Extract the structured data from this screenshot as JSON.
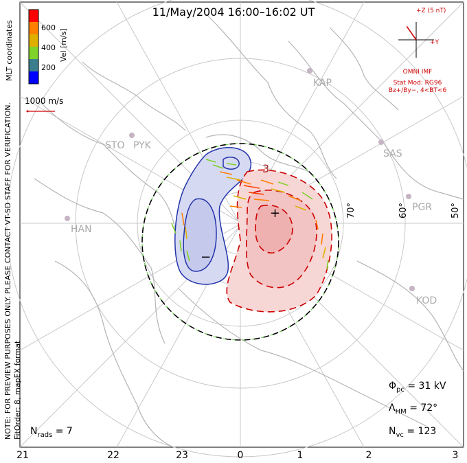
{
  "title": "11/May/2004 16:00–16:02 UT",
  "notice": {
    "line1": "NOTE: FOR PREVIEW PURPOSES ONLY. PLEASE CONTACT VT-SD STAFF FOR VERIFICATION.",
    "line2": "FitOrder: 8, mapEX format"
  },
  "coordinates_label": "MLT coordinates",
  "colorbar": {
    "label": "Vel [m/s]",
    "ticks": [
      "600",
      "400",
      "200"
    ],
    "colors": [
      "#0000ff",
      "#3b7f8f",
      "#7fd32a",
      "#e0b000",
      "#ff8000",
      "#ff0000"
    ]
  },
  "velocity_scale": {
    "label": "1000 m/s",
    "color": "#cc0000"
  },
  "mlt_labels": [
    "21",
    "22",
    "23",
    "0",
    "1",
    "2",
    "3"
  ],
  "latitude_labels": [
    "70°",
    "60°",
    "50°"
  ],
  "stations": [
    "KAP",
    "SAS",
    "PGR",
    "KOD",
    "STO",
    "PYK",
    "HAN"
  ],
  "imf": {
    "z_label": "+Z (5 nT)",
    "y_label": "+Y",
    "source": "OMNI IMF",
    "model_line1": "Stat Mod: RG96",
    "model_line2": "Bz+/By−, 4<BT<6",
    "clock_angle_deg": -35
  },
  "stats": {
    "phi_pc": {
      "symbol": "Φ",
      "sub": "pc",
      "value": "= 31 kV"
    },
    "lambda_hm": {
      "symbol": "Λ",
      "sub": "HM",
      "value": "= 72°"
    },
    "n_vc": {
      "symbol": "N",
      "sub": "vc",
      "value": "= 123"
    },
    "n_rads": {
      "symbol": "N",
      "sub": "rads",
      "value": "= 7"
    }
  },
  "cells": {
    "positive_marker": "+",
    "negative_marker": "−",
    "contour_label": "3",
    "positive_color": "#cc0000",
    "negative_color": "#0000aa"
  }
}
